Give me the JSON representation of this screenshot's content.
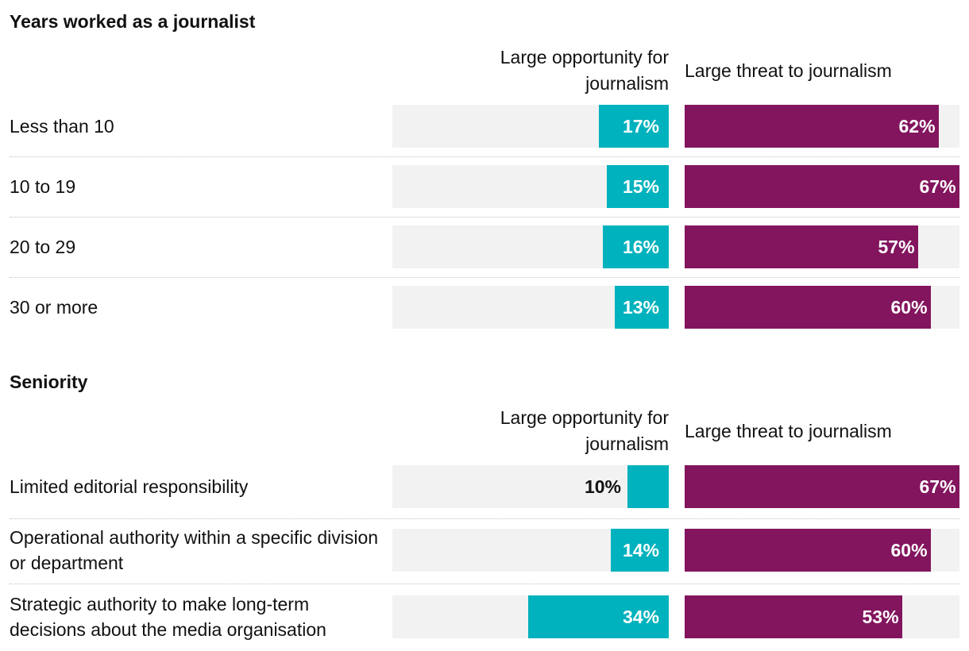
{
  "chart_data": [
    {
      "type": "bar",
      "title": "Years worked as a journalist",
      "categories": [
        "Less than 10",
        "10 to 19",
        "20 to 29",
        "30 or more"
      ],
      "series": [
        {
          "name": "Large opportunity for journalism",
          "values": [
            17,
            15,
            16,
            13
          ],
          "labels": [
            "17%",
            "15%",
            "16%",
            "13%"
          ]
        },
        {
          "name": "Large threat to journalism",
          "values": [
            62,
            67,
            57,
            60
          ],
          "labels": [
            "62%",
            "67%",
            "57%",
            "60%"
          ]
        }
      ],
      "ylim": [
        0,
        67
      ]
    },
    {
      "type": "bar",
      "title": "Seniority",
      "categories": [
        "Limited editorial responsibility",
        "Operational authority within a specific division or department",
        "Strategic authority to make long-term decisions about the media organisation"
      ],
      "series": [
        {
          "name": "Large opportunity for journalism",
          "values": [
            10,
            14,
            34
          ],
          "labels": [
            "10%",
            "14%",
            "34%"
          ]
        },
        {
          "name": "Large threat to journalism",
          "values": [
            67,
            60,
            53
          ],
          "labels": [
            "67%",
            "60%",
            "53%"
          ]
        }
      ],
      "ylim": [
        0,
        67
      ]
    }
  ],
  "headers": {
    "opportunity": [
      "Large opportunity for",
      "journalism"
    ],
    "threat": "Large threat to journalism"
  },
  "colors": {
    "opportunity": "#00b2bd",
    "threat": "#83155e",
    "track": "#f2f2f2",
    "label_inside": "#ffffff",
    "label_outside": "#111111"
  }
}
